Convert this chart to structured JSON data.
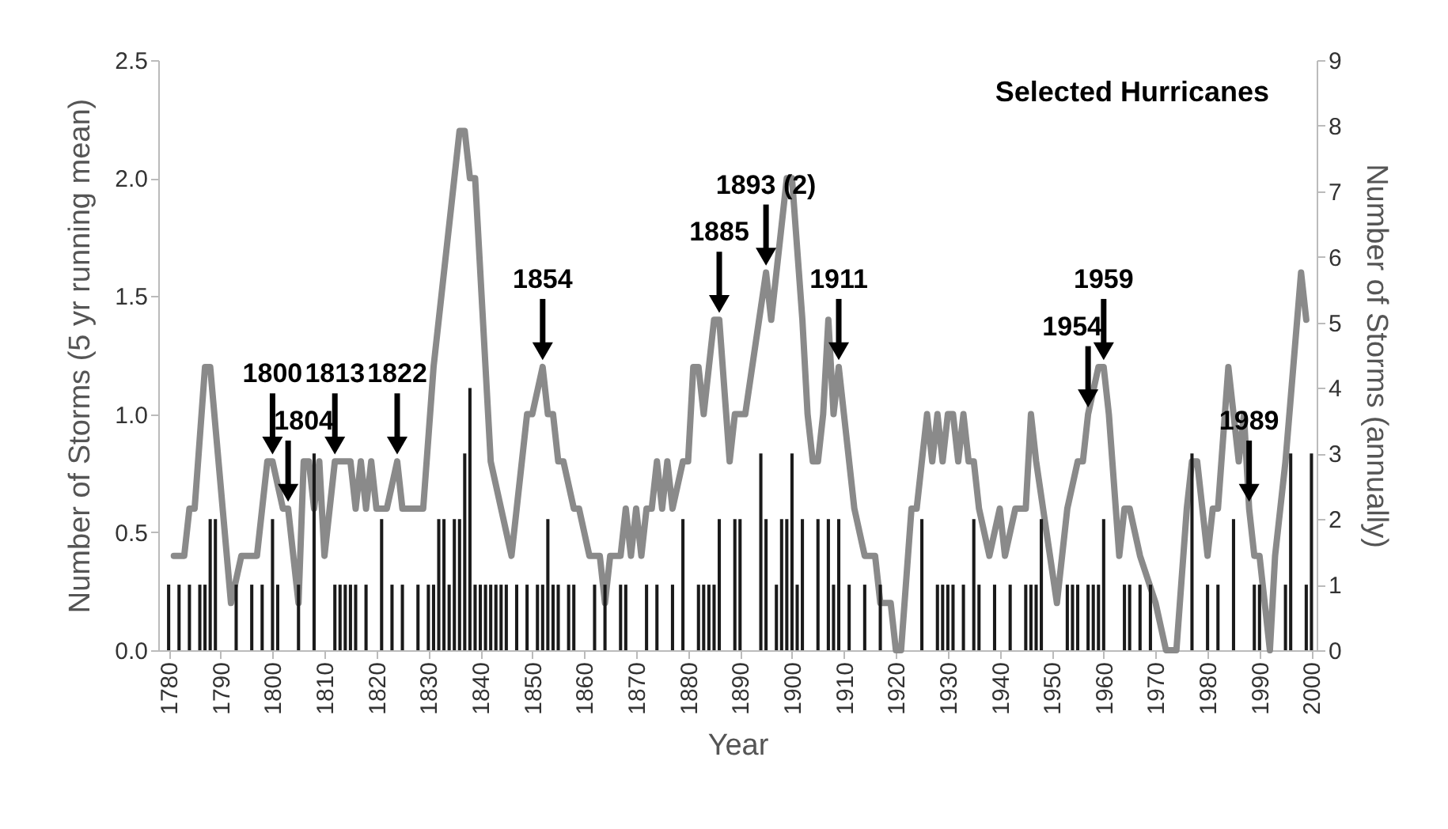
{
  "chart_data": {
    "type": "bar",
    "xlabel": "Year",
    "ylabel": "Number of Storms (5 yr running mean)",
    "y2label": "Number of Storms (annually)",
    "xlim": [
      1778,
      2001
    ],
    "xticks": [
      1780,
      1790,
      1800,
      1810,
      1820,
      1830,
      1840,
      1850,
      1860,
      1870,
      1880,
      1890,
      1900,
      1910,
      1920,
      1930,
      1940,
      1950,
      1960,
      1970,
      1980,
      1990,
      2000
    ],
    "ylim": [
      0,
      2.5
    ],
    "yticks": [
      {
        "value": 0,
        "label": "0.0"
      },
      0.5,
      {
        "value": 1,
        "label": "1.0"
      },
      1.5,
      {
        "value": 2,
        "label": "2.0"
      },
      2.5
    ],
    "y2lim": [
      0,
      9
    ],
    "y2ticks": [
      0,
      1,
      2,
      3,
      4,
      5,
      6,
      7,
      8,
      9
    ],
    "grid": false,
    "series": [
      {
        "axis": "y2",
        "color": "#1a1a1a",
        "x": [
          1780,
          1782,
          1784,
          1786,
          1787,
          1788,
          1789,
          1793,
          1796,
          1798,
          1800,
          1801,
          1805,
          1808,
          1812,
          1813,
          1814,
          1815,
          1816,
          1818,
          1821,
          1823,
          1825,
          1828,
          1830,
          1831,
          1832,
          1833,
          1834,
          1835,
          1836,
          1837,
          1838,
          1839,
          1840,
          1841,
          1842,
          1843,
          1844,
          1845,
          1847,
          1849,
          1851,
          1852,
          1853,
          1854,
          1855,
          1857,
          1858,
          1862,
          1864,
          1867,
          1868,
          1872,
          1874,
          1877,
          1879,
          1882,
          1883,
          1884,
          1885,
          1886,
          1889,
          1890,
          1894,
          1895,
          1897,
          1898,
          1899,
          1900,
          1901,
          1902,
          1905,
          1907,
          1908,
          1909,
          1911,
          1914,
          1917,
          1925,
          1928,
          1929,
          1930,
          1931,
          1933,
          1935,
          1936,
          1939,
          1942,
          1945,
          1946,
          1947,
          1948,
          1953,
          1954,
          1955,
          1957,
          1958,
          1959,
          1960,
          1964,
          1965,
          1967,
          1969,
          1977,
          1980,
          1982,
          1985,
          1989,
          1990,
          1995,
          1996,
          1999,
          2000
        ],
        "values": [
          1,
          1,
          1,
          1,
          1,
          2,
          2,
          1,
          1,
          1,
          2,
          1,
          1,
          3,
          1,
          1,
          1,
          1,
          1,
          1,
          2,
          1,
          1,
          1,
          1,
          1,
          2,
          2,
          1,
          2,
          2,
          3,
          4,
          1,
          1,
          1,
          1,
          1,
          1,
          1,
          1,
          1,
          1,
          1,
          2,
          1,
          1,
          1,
          1,
          1,
          1,
          1,
          1,
          1,
          1,
          1,
          2,
          1,
          1,
          1,
          1,
          2,
          2,
          2,
          3,
          2,
          1,
          2,
          2,
          3,
          1,
          2,
          2,
          2,
          1,
          2,
          1,
          1,
          1,
          2,
          1,
          1,
          1,
          1,
          1,
          2,
          1,
          1,
          1,
          1,
          1,
          1,
          2,
          1,
          1,
          1,
          1,
          1,
          1,
          2,
          1,
          1,
          1,
          1,
          3,
          1,
          1,
          2,
          1,
          1,
          1,
          3,
          1,
          3
        ]
      },
      {
        "type": "line",
        "color": "#8a8a8a",
        "x": [
          1781,
          1783,
          1784,
          1785,
          1787,
          1788,
          1792,
          1794,
          1797,
          1799,
          1800,
          1802,
          1803,
          1805,
          1806,
          1807,
          1808,
          1809,
          1810,
          1812,
          1815,
          1816,
          1817,
          1818,
          1819,
          1820,
          1822,
          1824,
          1825,
          1829,
          1831,
          1833,
          1836,
          1837,
          1838,
          1839,
          1841,
          1842,
          1844,
          1846,
          1847,
          1849,
          1850,
          1852,
          1853,
          1854,
          1855,
          1856,
          1858,
          1859,
          1861,
          1863,
          1864,
          1865,
          1867,
          1868,
          1869,
          1870,
          1871,
          1872,
          1873,
          1874,
          1875,
          1876,
          1877,
          1879,
          1880,
          1881,
          1882,
          1883,
          1884,
          1885,
          1886,
          1888,
          1889,
          1891,
          1895,
          1896,
          1897,
          1899,
          1900,
          1902,
          1903,
          1904,
          1905,
          1906,
          1907,
          1908,
          1909,
          1910,
          1912,
          1914,
          1916,
          1917,
          1919,
          1920,
          1921,
          1923,
          1924,
          1926,
          1927,
          1928,
          1929,
          1930,
          1931,
          1932,
          1933,
          1934,
          1935,
          1936,
          1938,
          1940,
          1941,
          1943,
          1945,
          1946,
          1947,
          1951,
          1953,
          1955,
          1956,
          1957,
          1959,
          1960,
          1961,
          1963,
          1964,
          1965,
          1967,
          1970,
          1972,
          1974,
          1976,
          1977,
          1978,
          1980,
          1981,
          1982,
          1984,
          1986,
          1987,
          1988,
          1989,
          1990,
          1992,
          1993,
          1995,
          1998,
          1999
        ],
        "values": [
          0.4,
          0.4,
          0.6,
          0.6,
          1.2,
          1.2,
          0.2,
          0.4,
          0.4,
          0.8,
          0.8,
          0.6,
          0.6,
          0.2,
          0.8,
          0.8,
          0.6,
          0.8,
          0.4,
          0.8,
          0.8,
          0.6,
          0.8,
          0.6,
          0.8,
          0.6,
          0.6,
          0.8,
          0.6,
          0.6,
          1.2,
          1.6,
          2.2,
          2.2,
          2.0,
          2.0,
          1.2,
          0.8,
          0.6,
          0.4,
          0.6,
          1.0,
          1.0,
          1.2,
          1.0,
          1.0,
          0.8,
          0.8,
          0.6,
          0.6,
          0.4,
          0.4,
          0.2,
          0.4,
          0.4,
          0.6,
          0.4,
          0.6,
          0.4,
          0.6,
          0.6,
          0.8,
          0.6,
          0.8,
          0.6,
          0.8,
          0.8,
          1.2,
          1.2,
          1.0,
          1.2,
          1.4,
          1.4,
          0.8,
          1.0,
          1.0,
          1.6,
          1.4,
          1.6,
          2.0,
          2.0,
          1.4,
          1.0,
          0.8,
          0.8,
          1.0,
          1.4,
          1.0,
          1.2,
          1.0,
          0.6,
          0.4,
          0.4,
          0.2,
          0.2,
          0,
          0,
          0.6,
          0.6,
          1.0,
          0.8,
          1.0,
          0.8,
          1.0,
          1.0,
          0.8,
          1.0,
          0.8,
          0.8,
          0.6,
          0.4,
          0.6,
          0.4,
          0.6,
          0.6,
          1.0,
          0.8,
          0.2,
          0.6,
          0.8,
          0.8,
          1.0,
          1.2,
          1.2,
          1.0,
          0.4,
          0.6,
          0.6,
          0.4,
          0.2,
          0,
          0,
          0.6,
          0.8,
          0.8,
          0.4,
          0.6,
          0.6,
          1.2,
          0.8,
          1.0,
          0.6,
          0.4,
          0.4,
          0,
          0.4,
          0.8,
          1.6,
          1.4
        ]
      }
    ],
    "annotations": [
      "Selected Hurricanes",
      {
        "text": "1800",
        "x": 1800,
        "y": 0.8
      },
      {
        "text": "1804",
        "x": 1803,
        "y": 0.6
      },
      {
        "text": "1813",
        "x": 1812,
        "y": 0.8
      },
      {
        "text": "1822",
        "x": 1824,
        "y": 0.8
      },
      {
        "text": "1854",
        "x": 1852,
        "y": 1.2
      },
      {
        "text": "1885",
        "x": 1886,
        "y": 1.4
      },
      {
        "text": "1893 (2)",
        "x": 1895,
        "y": 1.6
      },
      {
        "text": "1911",
        "x": 1909,
        "y": 1.2
      },
      {
        "text": "1954",
        "x": 1957,
        "y": 1.0
      },
      {
        "text": "1959",
        "x": 1960,
        "y": 1.2
      },
      {
        "text": "1989",
        "x": 1988,
        "y": 0.6
      }
    ]
  }
}
